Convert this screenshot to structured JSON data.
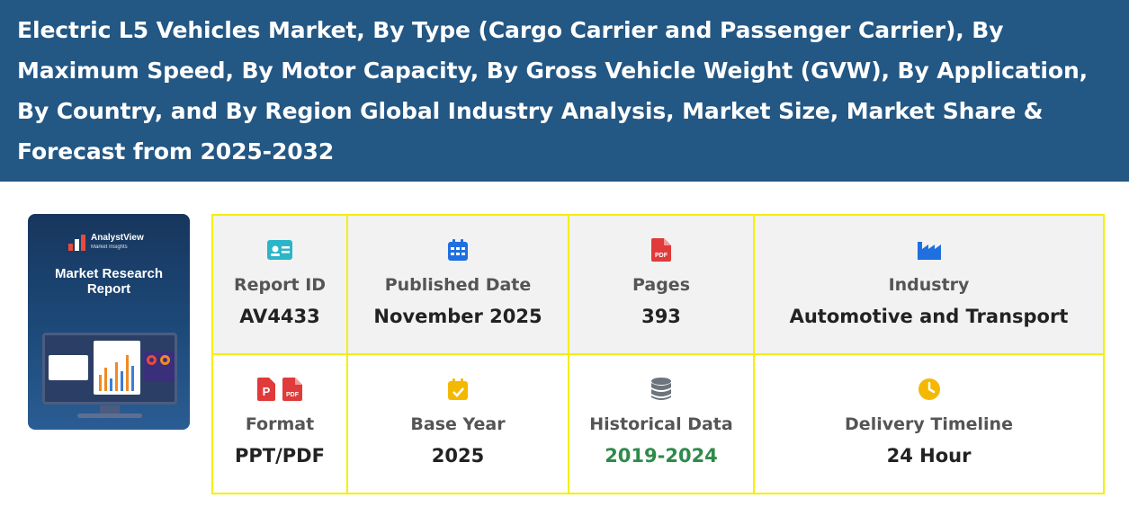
{
  "header": {
    "title": "Electric L5 Vehicles Market, By Type (Cargo Carrier and Passenger Carrier), By Maximum Speed, By Motor Capacity, By Gross Vehicle Weight (GVW), By Application, By Country, and By Region Global Industry Analysis, Market Size, Market Share & Forecast from 2025-2032"
  },
  "cover": {
    "brand": "AnalystView",
    "brand_sub": "Market Insights",
    "title_line1": "Market Research",
    "title_line2": "Report"
  },
  "info": {
    "report_id": {
      "label": "Report ID",
      "value": "AV4433",
      "icon": "id-card-icon",
      "color": "#2bb5c9"
    },
    "published_date": {
      "label": "Published Date",
      "value": "November 2025",
      "icon": "calendar-icon",
      "color": "#1f6fe0"
    },
    "pages": {
      "label": "Pages",
      "value": "393",
      "icon": "pdf-file-icon",
      "color": "#e03a3a"
    },
    "industry": {
      "label": "Industry",
      "value": "Automotive and Transport",
      "icon": "factory-icon",
      "color": "#1f6fe0"
    },
    "format": {
      "label": "Format",
      "value": "PPT/PDF",
      "icons": [
        "ppt-file-icon",
        "pdf-file-icon"
      ],
      "color": "#e03a3a"
    },
    "base_year": {
      "label": "Base Year",
      "value": "2025",
      "icon": "calendar-check-icon",
      "color": "#f5b800"
    },
    "historical_data": {
      "label": "Historical Data",
      "value": "2019-2024",
      "icon": "database-icon",
      "color": "#6c757d",
      "value_color": "#2e8b4a"
    },
    "delivery_timeline": {
      "label": "Delivery Timeline",
      "value": "24 Hour",
      "icon": "clock-icon",
      "color": "#f5b800"
    }
  },
  "colors": {
    "banner": "#235784",
    "cell_border": "#f5ef00",
    "shaded_row": "#f2f2f2"
  }
}
